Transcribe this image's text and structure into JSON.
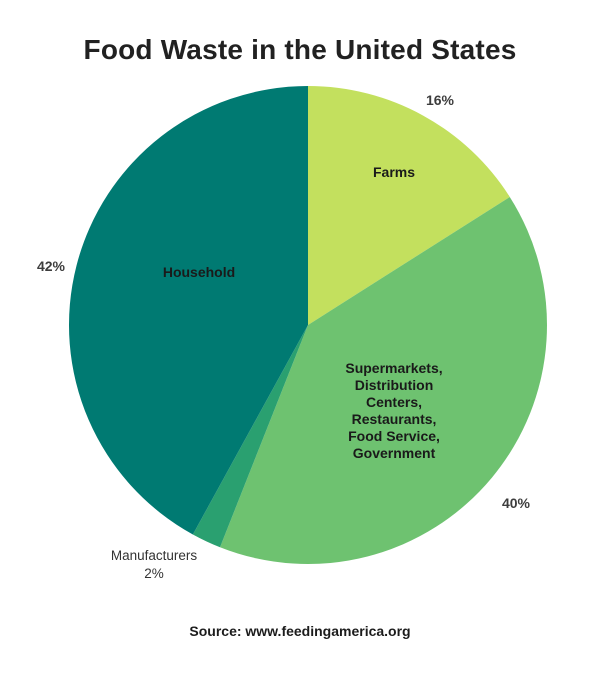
{
  "chart_data": {
    "type": "pie",
    "title": "Food Waste in the United States",
    "source": "Source: www.feedingamerica.org",
    "start_angle_deg": 0,
    "direction": "clockwise",
    "legend_position": "none",
    "slices": [
      {
        "name": "Farms",
        "display": "Farms",
        "value": 16,
        "pct": "16%",
        "color": "#c3e05e"
      },
      {
        "name": "Supermarkets, Distribution Centers, Restaurants, Food Service, Government",
        "display": "Supermarkets,\nDistribution\nCenters,\nRestaurants,\nFood Service,\nGovernment",
        "value": 40,
        "pct": "40%",
        "color": "#6ec270"
      },
      {
        "name": "Manufacturers",
        "display": "Manufacturers",
        "value": 2,
        "pct": "2%",
        "color": "#2aa070"
      },
      {
        "name": "Household",
        "display": "Household",
        "value": 42,
        "pct": "42%",
        "color": "#007a72"
      }
    ]
  }
}
